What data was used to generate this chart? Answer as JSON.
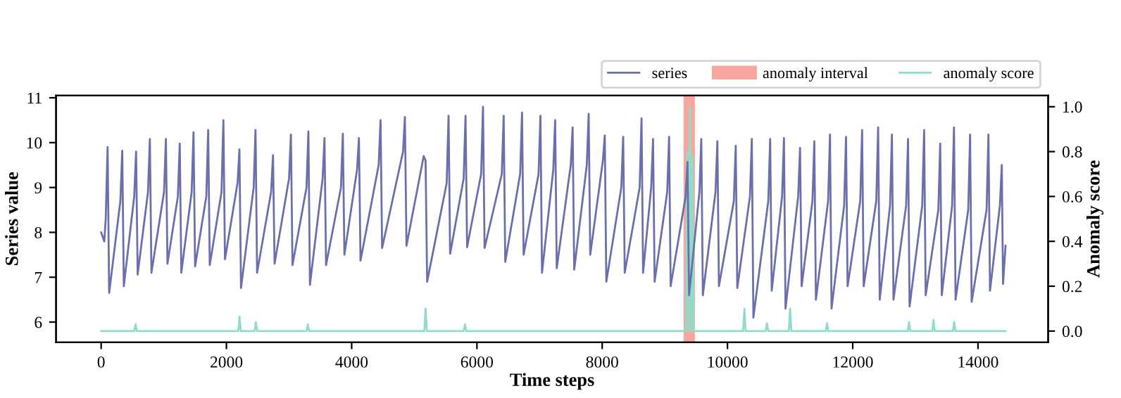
{
  "chart_data": {
    "type": "line",
    "xlabel": "Time steps",
    "ylabel": "Series value",
    "y2label": "Anomaly score",
    "xlim": [
      -720,
      15120
    ],
    "xticks": [
      0,
      2000,
      4000,
      6000,
      8000,
      10000,
      12000,
      14000
    ],
    "ylim": [
      5.55,
      11.05
    ],
    "yticks": [
      6,
      7,
      8,
      9,
      10,
      11
    ],
    "y2lim": [
      -0.05,
      1.05
    ],
    "y2ticks": [
      {
        "value": 0,
        "label": "0.0"
      },
      {
        "value": 0.2,
        "label": "0.2"
      },
      {
        "value": 0.4,
        "label": "0.4"
      },
      {
        "value": 0.6,
        "label": "0.6"
      },
      {
        "value": 0.8,
        "label": "0.8"
      },
      {
        "value": 1,
        "label": "1.0"
      }
    ],
    "legend": "top right",
    "grid": false,
    "bands": [
      {
        "axis": "x",
        "from": 9300,
        "to": 9480,
        "label": "anomaly interval",
        "color": "#f8a69d"
      }
    ],
    "series": [
      {
        "name": "series",
        "color": "#6b6fad",
        "x": [
          0,
          50,
          73,
          103,
          128,
          307,
          337,
          362,
          528,
          558,
          583,
          748,
          778,
          803,
          1004,
          1034,
          1059,
          1225,
          1255,
          1280,
          1445,
          1475,
          1500,
          1679,
          1709,
          1734,
          1922,
          1952,
          1977,
          2178,
          2208,
          2233,
          2435,
          2465,
          2490,
          2714,
          2744,
          2769,
          3000,
          3030,
          3055,
          3279,
          3309,
          3334,
          3536,
          3566,
          3591,
          3829,
          3859,
          3884,
          4086,
          4116,
          4141,
          4431,
          4461,
          4486,
          4820,
          4850,
          4875,
          5150,
          5180,
          5205,
          5517,
          5547,
          5572,
          5788,
          5818,
          5843,
          6067,
          6097,
          6122,
          6397,
          6427,
          6452,
          6690,
          6720,
          6745,
          6984,
          7014,
          7039,
          7219,
          7249,
          7274,
          7498,
          7528,
          7553,
          7754,
          7784,
          7809,
          8011,
          8041,
          8066,
          8305,
          8335,
          8360,
          8598,
          8628,
          8653,
          8782,
          8812,
          8837,
          9038,
          9068,
          9093,
          9332,
          9362,
          9387,
          9552,
          9582,
          9607,
          9809,
          9839,
          9864,
          10102,
          10132,
          10157,
          10359,
          10389,
          10414,
          10652,
          10682,
          10707,
          10872,
          10902,
          10927,
          11129,
          11159,
          11184,
          11357,
          11387,
          11412,
          11607,
          11637,
          11662,
          11863,
          11893,
          11918,
          12120,
          12150,
          12175,
          12376,
          12406,
          12431,
          12596,
          12626,
          12651,
          12853,
          12883,
          12908,
          13110,
          13140,
          13165,
          13367,
          13397,
          13422,
          13587,
          13617,
          13642,
          13844,
          13874,
          13899,
          14137,
          14167,
          14192,
          14350,
          14380,
          14400,
          14440
        ],
        "values": [
          8.0,
          7.8,
          8.3,
          9.9,
          6.65,
          8.7,
          9.82,
          6.8,
          8.8,
          9.8,
          7.06,
          8.9,
          10.08,
          7.1,
          8.9,
          10.08,
          7.3,
          8.8,
          9.98,
          7.1,
          8.9,
          10.23,
          7.24,
          8.8,
          10.28,
          7.27,
          8.9,
          10.5,
          7.4,
          9.1,
          9.85,
          6.76,
          9.0,
          10.28,
          7.1,
          8.9,
          9.72,
          7.3,
          9.2,
          10.18,
          7.27,
          9.0,
          10.25,
          6.83,
          9.2,
          10.1,
          7.27,
          9.0,
          10.2,
          7.5,
          9.4,
          10.1,
          7.37,
          9.5,
          10.5,
          7.65,
          9.8,
          10.57,
          7.7,
          9.7,
          9.6,
          6.9,
          9.1,
          10.6,
          7.52,
          9.2,
          10.6,
          7.67,
          9.3,
          10.8,
          7.65,
          9.3,
          10.6,
          7.34,
          9.3,
          10.67,
          7.5,
          9.3,
          10.6,
          7.1,
          9.4,
          10.5,
          7.2,
          9.5,
          10.34,
          7.17,
          9.5,
          10.64,
          7.5,
          9.6,
          10.16,
          6.9,
          9.0,
          10.13,
          7.1,
          9.0,
          10.54,
          7.1,
          9.0,
          10.08,
          6.9,
          8.9,
          10.13,
          6.8,
          8.8,
          9.57,
          6.6,
          8.9,
          10.08,
          6.6,
          8.9,
          10.03,
          6.8,
          8.7,
          9.93,
          6.76,
          8.8,
          10.08,
          6.1,
          8.7,
          10.08,
          6.7,
          8.8,
          10.1,
          6.3,
          8.8,
          9.88,
          6.8,
          8.7,
          10.03,
          6.5,
          8.7,
          10.18,
          6.3,
          8.6,
          10.13,
          6.8,
          8.7,
          10.28,
          6.8,
          8.7,
          10.34,
          6.5,
          8.6,
          10.18,
          6.5,
          8.6,
          10.08,
          6.35,
          8.6,
          10.28,
          6.6,
          8.5,
          9.98,
          6.6,
          8.6,
          10.34,
          6.5,
          8.5,
          10.18,
          6.45,
          8.5,
          10.18,
          6.7,
          8.6,
          9.5,
          6.85,
          7.7
        ]
      },
      {
        "name": "anomaly score",
        "color": "#8fdcca",
        "axis": "y2",
        "x": [
          0,
          530,
          550,
          570,
          2190,
          2210,
          2230,
          2450,
          2470,
          2490,
          3280,
          3300,
          3320,
          5160,
          5180,
          5200,
          5790,
          5810,
          5830,
          9340,
          9360,
          9380,
          9400,
          9420,
          9440,
          9460,
          10250,
          10270,
          10290,
          10610,
          10630,
          10650,
          10980,
          11000,
          11020,
          11570,
          11590,
          11610,
          12880,
          12900,
          12920,
          13270,
          13290,
          13310,
          13600,
          13620,
          13640,
          14440
        ],
        "values": [
          0,
          0,
          0.03,
          0,
          0,
          0.065,
          0,
          0,
          0.04,
          0,
          0,
          0.03,
          0,
          0,
          0.1,
          0,
          0,
          0.03,
          0,
          0,
          0.8,
          0,
          1.0,
          0,
          0.78,
          0,
          0,
          0.1,
          0,
          0,
          0.035,
          0,
          0,
          0.1,
          0,
          0,
          0.035,
          0,
          0,
          0.04,
          0,
          0,
          0.05,
          0,
          0,
          0.04,
          0,
          0
        ]
      }
    ]
  }
}
